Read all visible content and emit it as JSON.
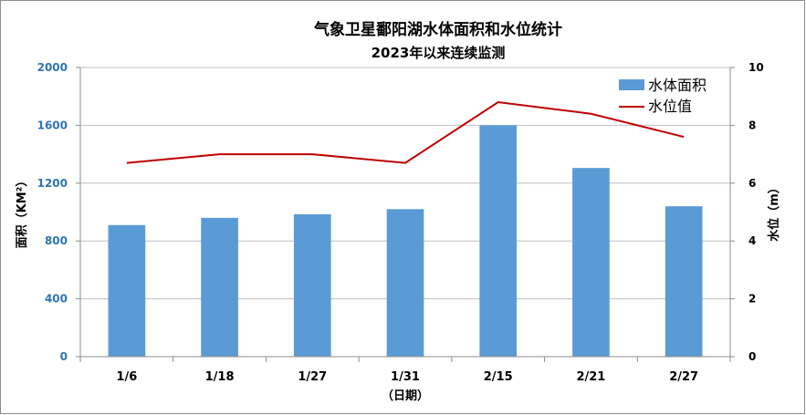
{
  "chart_data": {
    "type": "bar+line",
    "title": "气象卫星鄱阳湖水体面积和水位统计",
    "subtitle": "2023年以来连续监测",
    "xlabel": "（日期）",
    "categories": [
      "1/6",
      "1/18",
      "1/27",
      "1/31",
      "2/15",
      "2/21",
      "2/27"
    ],
    "left_axis": {
      "label": "面积（KM²）",
      "ylim": [
        0,
        2000
      ],
      "ticks": [
        "0",
        "400",
        "800",
        "1200",
        "1600",
        "2000"
      ],
      "tick_values": [
        0,
        400,
        800,
        1200,
        1600,
        2000
      ]
    },
    "right_axis": {
      "label": "水位（m）",
      "ylim": [
        0,
        10
      ],
      "ticks": [
        "0",
        "2",
        "4",
        "6",
        "8",
        "10"
      ],
      "tick_values": [
        0,
        2,
        4,
        6,
        8,
        10
      ]
    },
    "series": [
      {
        "name": "水体面积",
        "type": "bar",
        "axis": "left",
        "color": "#5b9bd5",
        "values": [
          910,
          960,
          985,
          1020,
          1600,
          1305,
          1040
        ]
      },
      {
        "name": "水位值",
        "type": "line",
        "axis": "right",
        "color": "#c00000",
        "values": [
          6.7,
          7.0,
          7.0,
          6.7,
          8.8,
          8.4,
          7.6
        ]
      }
    ],
    "grid": true,
    "legend": "top-right"
  }
}
